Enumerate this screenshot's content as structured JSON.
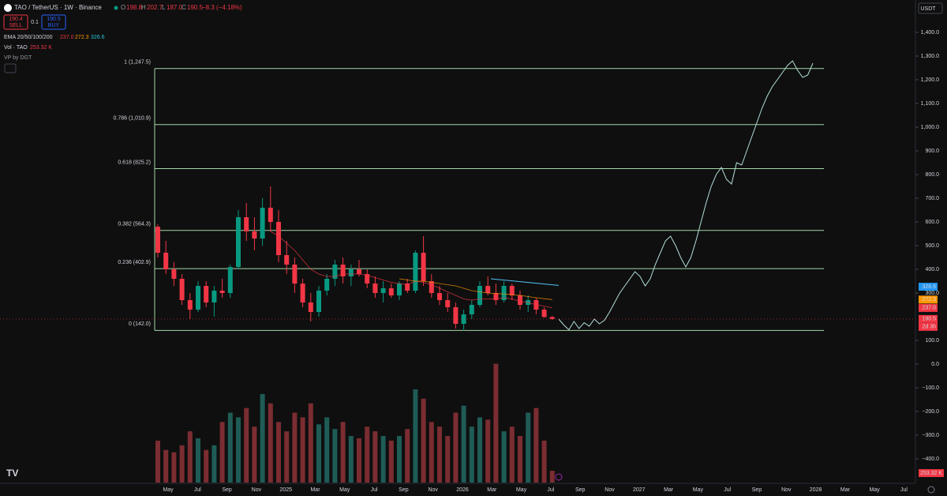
{
  "chart_data": {
    "type": "candlestick",
    "symbol": "TAO / TetherUS · 1W · Binance",
    "ohlc_header": {
      "o_label": "O",
      "o": "198.8",
      "h_label": "H",
      "h": "202.7",
      "l_label": "L",
      "l": "187.0",
      "c_label": "C",
      "c": "190.5",
      "change": "−8.3 (−4.18%)"
    },
    "trade": {
      "sell_price": "190.4",
      "sell": "SELL",
      "spread": "0.1",
      "buy_price": "190.5",
      "buy": "BUY"
    },
    "ema_legend": {
      "name": "EMA 20/50/100/200",
      "v1": "237.0",
      "v2": "272.3",
      "v3": "326.6"
    },
    "vol_legend": {
      "name": "Vol · TAO",
      "value": "253.32 K"
    },
    "vp_legend": "VP by DGT",
    "currency": "USDT",
    "up_color": "#089981",
    "down_color": "#f23645",
    "ylim": [
      -450,
      1450
    ],
    "yticks": [
      {
        "value": 1400,
        "label": "1,400.0"
      },
      {
        "value": 1300,
        "label": "1,300.0"
      },
      {
        "value": 1200,
        "label": "1,200.0"
      },
      {
        "value": 1100,
        "label": "1,100.0"
      },
      {
        "value": 1000,
        "label": "1,000.0"
      },
      {
        "value": 900,
        "label": "900.0"
      },
      {
        "value": 800,
        "label": "800.0"
      },
      {
        "value": 700,
        "label": "700.0"
      },
      {
        "value": 600,
        "label": "600.0"
      },
      {
        "value": 500,
        "label": "500.0"
      },
      {
        "value": 400,
        "label": "400.0"
      },
      {
        "value": 300,
        "label": "300.0"
      },
      {
        "value": 100,
        "label": "100.0"
      },
      {
        "value": 0,
        "label": "0.0"
      },
      {
        "value": -100,
        "label": "−100.0"
      },
      {
        "value": -200,
        "label": "−200.0"
      },
      {
        "value": -300,
        "label": "−300.0"
      },
      {
        "value": -400,
        "label": "−400.0"
      }
    ],
    "x_labels": [
      "May",
      "Jul",
      "Sep",
      "Nov",
      "2025",
      "Mar",
      "May",
      "Jul",
      "Sep",
      "Nov",
      "2026",
      "Mar",
      "May",
      "Jul",
      "Sep",
      "Nov",
      "2027",
      "Mar",
      "May",
      "Jul",
      "Sep",
      "Nov",
      "2028",
      "Mar",
      "May",
      "Jul"
    ],
    "candles": [
      [
        580,
        590,
        450,
        470
      ],
      [
        470,
        520,
        380,
        400
      ],
      [
        400,
        430,
        330,
        360
      ],
      [
        360,
        380,
        250,
        270
      ],
      [
        270,
        300,
        190,
        230
      ],
      [
        230,
        350,
        220,
        330
      ],
      [
        330,
        350,
        240,
        260
      ],
      [
        260,
        330,
        200,
        310
      ],
      [
        310,
        360,
        280,
        300
      ],
      [
        300,
        420,
        280,
        410
      ],
      [
        410,
        650,
        400,
        620
      ],
      [
        620,
        680,
        520,
        560
      ],
      [
        560,
        620,
        480,
        530
      ],
      [
        530,
        700,
        500,
        660
      ],
      [
        660,
        750,
        560,
        600
      ],
      [
        600,
        650,
        430,
        460
      ],
      [
        460,
        520,
        380,
        420
      ],
      [
        420,
        450,
        300,
        340
      ],
      [
        340,
        360,
        240,
        260
      ],
      [
        260,
        300,
        180,
        220
      ],
      [
        220,
        330,
        200,
        310
      ],
      [
        310,
        380,
        290,
        360
      ],
      [
        360,
        440,
        330,
        420
      ],
      [
        420,
        450,
        340,
        370
      ],
      [
        370,
        420,
        330,
        400
      ],
      [
        400,
        440,
        370,
        380
      ],
      [
        380,
        400,
        320,
        340
      ],
      [
        340,
        370,
        280,
        300
      ],
      [
        300,
        350,
        260,
        320
      ],
      [
        320,
        340,
        280,
        290
      ],
      [
        290,
        350,
        270,
        340
      ],
      [
        340,
        360,
        300,
        310
      ],
      [
        310,
        480,
        300,
        470
      ],
      [
        470,
        540,
        330,
        350
      ],
      [
        350,
        380,
        280,
        300
      ],
      [
        300,
        330,
        250,
        270
      ],
      [
        270,
        300,
        220,
        240
      ],
      [
        240,
        260,
        150,
        170
      ],
      [
        170,
        230,
        140,
        210
      ],
      [
        210,
        270,
        190,
        250
      ],
      [
        250,
        350,
        240,
        330
      ],
      [
        330,
        370,
        290,
        300
      ],
      [
        300,
        340,
        250,
        270
      ],
      [
        270,
        350,
        260,
        330
      ],
      [
        330,
        340,
        270,
        290
      ],
      [
        290,
        310,
        230,
        250
      ],
      [
        250,
        290,
        220,
        270
      ],
      [
        270,
        280,
        210,
        230
      ],
      [
        230,
        240,
        196,
        198.8
      ],
      [
        198.8,
        202.7,
        187.0,
        190.5
      ]
    ],
    "volume": [
      900,
      700,
      650,
      800,
      1100,
      950,
      700,
      800,
      1300,
      1500,
      1400,
      1600,
      1200,
      1900,
      1700,
      1300,
      1100,
      1500,
      1400,
      1700,
      1250,
      1400,
      1150,
      1300,
      1000,
      950,
      1200,
      1100,
      1000,
      900,
      1000,
      1150,
      2000,
      1800,
      1300,
      1200,
      1000,
      1500,
      1650,
      1200,
      1400,
      1350,
      2550,
      1100,
      1200,
      1000,
      1500,
      1600,
      900,
      253.32
    ],
    "ema": [
      {
        "name": "EMA 20",
        "color": "#f23645",
        "values": [
          null,
          null,
          null,
          null,
          null,
          null,
          null,
          null,
          null,
          null,
          null,
          null,
          null,
          null,
          560,
          540,
          510,
          480,
          440,
          400,
          380,
          370,
          370,
          380,
          380,
          380,
          375,
          365,
          355,
          345,
          340,
          335,
          350,
          345,
          335,
          320,
          305,
          290,
          275,
          270,
          275,
          275,
          275,
          280,
          275,
          265,
          260,
          250,
          245,
          237
        ]
      },
      {
        "name": "EMA 50",
        "color": "#ff9800",
        "values": [
          null,
          null,
          null,
          null,
          null,
          null,
          null,
          null,
          null,
          null,
          null,
          null,
          null,
          null,
          null,
          null,
          null,
          null,
          null,
          null,
          null,
          null,
          null,
          null,
          null,
          null,
          null,
          null,
          null,
          null,
          360,
          355,
          350,
          350,
          345,
          340,
          335,
          330,
          320,
          310,
          305,
          300,
          298,
          296,
          293,
          290,
          285,
          280,
          276,
          272.3
        ]
      }
    ],
    "price_tags": [
      {
        "value": 326.6,
        "label": "326.6",
        "color": "#2196f3"
      },
      {
        "value": 272.3,
        "label": "272.3",
        "color": "#ff9800"
      },
      {
        "value": 237.0,
        "label": "237.0",
        "color": "#f23645"
      },
      {
        "value": 190.5,
        "label": "190.5",
        "color": "#f23645"
      }
    ],
    "countdown": "2d 3h",
    "fib_levels": [
      {
        "value": 1247.5,
        "label": "1 (1,247.5)"
      },
      {
        "value": 1010.9,
        "label": "0.786 (1,010.9)"
      },
      {
        "value": 825.2,
        "label": "0.618 (825.2)"
      },
      {
        "value": 564.3,
        "label": "0.382 (564.3)"
      },
      {
        "value": 402.9,
        "label": "0.236 (402.9)"
      },
      {
        "value": 142.0,
        "label": "0 (142.0)"
      }
    ],
    "trendline": [
      360,
      332
    ],
    "projection": [
      190,
      165,
      145,
      180,
      150,
      175,
      160,
      190,
      170,
      185,
      220,
      260,
      300,
      330,
      360,
      390,
      370,
      330,
      360,
      420,
      470,
      520,
      540,
      500,
      450,
      410,
      450,
      520,
      600,
      680,
      750,
      800,
      830,
      780,
      760,
      850,
      840,
      900,
      960,
      1020,
      1080,
      1130,
      1170,
      1200,
      1230,
      1260,
      1280,
      1240,
      1210,
      1220,
      1270
    ]
  }
}
